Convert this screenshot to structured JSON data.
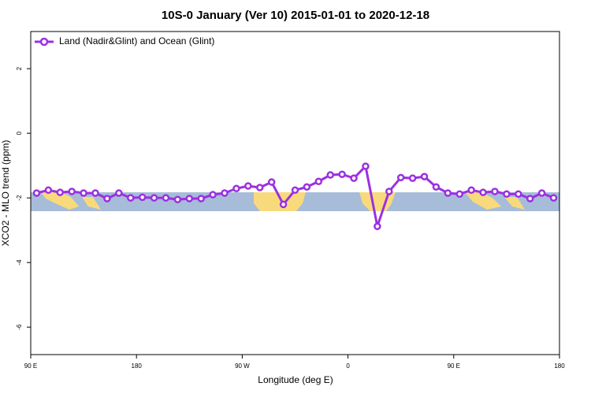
{
  "chart_data": {
    "type": "line",
    "title": "10S-0 January (Ver 10)   2015-01-01 to 2020-12-18",
    "x_label": "Longitude (deg E)",
    "y_label": "XCO2 - MLO trend (ppm)",
    "x": [
      95,
      105,
      115,
      125,
      135,
      145,
      155,
      165,
      175,
      185,
      195,
      205,
      215,
      225,
      235,
      245,
      255,
      265,
      275,
      285,
      295,
      305,
      315,
      325,
      335,
      345,
      355,
      365,
      375,
      385,
      395,
      405,
      415,
      425,
      435,
      445,
      455,
      465,
      475,
      485,
      495,
      505,
      515,
      525,
      535
    ],
    "series": [
      {
        "name": "Land (Nadir&Glint) and Ocean (Glint)",
        "color": "#9b30e0",
        "values": [
          -1.85,
          -1.76,
          -1.83,
          -1.8,
          -1.85,
          -1.85,
          -2.02,
          -1.85,
          -2.0,
          -1.98,
          -2.0,
          -2.0,
          -2.05,
          -2.02,
          -2.02,
          -1.9,
          -1.85,
          -1.71,
          -1.63,
          -1.68,
          -1.51,
          -2.2,
          -1.76,
          -1.66,
          -1.49,
          -1.29,
          -1.27,
          -1.39,
          -1.02,
          -2.88,
          -1.8,
          -1.37,
          -1.39,
          -1.34,
          -1.66,
          -1.85,
          -1.88,
          -1.76,
          -1.83,
          -1.8,
          -1.88,
          -1.88,
          -2.02,
          -1.85,
          -2.0
        ]
      }
    ],
    "xlim": [
      90,
      540
    ],
    "xticks": [
      {
        "value": 90,
        "label": "90 E"
      },
      180,
      {
        "value": 270,
        "label": "90 W"
      },
      {
        "value": 360,
        "label": "0"
      },
      {
        "value": 450,
        "label": "90 E"
      },
      {
        "value": 540,
        "label": "180"
      }
    ],
    "ylim": [
      -6.85,
      3.15
    ],
    "yticks": [
      -6,
      -4,
      -2,
      0,
      2
    ],
    "legend": "top-left"
  }
}
